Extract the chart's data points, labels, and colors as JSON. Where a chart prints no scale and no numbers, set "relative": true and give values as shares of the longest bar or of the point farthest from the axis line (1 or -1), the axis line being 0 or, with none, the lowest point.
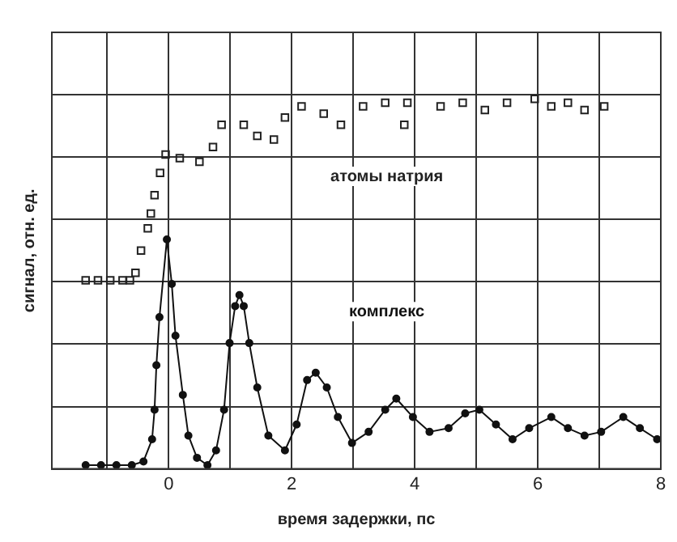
{
  "chart_data": {
    "type": "scatter",
    "xlabel": "время задержки, пс",
    "ylabel": "сигнал, отн. ед.",
    "relative": true,
    "grid": true,
    "legend": false,
    "xlim": [
      -1.9,
      8
    ],
    "xticks": [
      {
        "value": -1,
        "label": null
      },
      0,
      {
        "value": 1,
        "label": null
      },
      2,
      {
        "value": 3,
        "label": null
      },
      4,
      {
        "value": 5,
        "label": null
      },
      6,
      {
        "value": 7,
        "label": null
      },
      8
    ],
    "series": [
      {
        "name": "атомы натрия",
        "type": "scatter",
        "marker": "square",
        "color": "#222222",
        "x": [
          -1.35,
          -1.15,
          -0.95,
          -0.75,
          -0.63,
          -0.54,
          -0.45,
          -0.34,
          -0.29,
          -0.23,
          -0.14,
          -0.05,
          0.18,
          0.5,
          0.72,
          0.86,
          1.22,
          1.44,
          1.71,
          1.89,
          2.16,
          2.52,
          2.8,
          3.16,
          3.52,
          3.83,
          3.88,
          4.42,
          4.78,
          5.14,
          5.5,
          5.95,
          6.22,
          6.49,
          6.76,
          7.08
        ],
        "values": [
          0.51,
          0.51,
          0.51,
          0.51,
          0.51,
          0.53,
          0.59,
          0.65,
          0.69,
          0.74,
          0.8,
          0.85,
          0.84,
          0.83,
          0.87,
          0.93,
          0.93,
          0.9,
          0.89,
          0.95,
          0.98,
          0.96,
          0.93,
          0.98,
          0.99,
          0.93,
          0.99,
          0.98,
          0.99,
          0.97,
          0.99,
          1,
          0.98,
          0.99,
          0.97,
          0.98
        ]
      },
      {
        "name": "комплекс",
        "type": "line",
        "marker": "circle",
        "color": "#111111",
        "x": [
          -1.35,
          -1.1,
          -0.85,
          -0.6,
          -0.41,
          -0.27,
          -0.23,
          -0.2,
          -0.15,
          -0.03,
          0.05,
          0.11,
          0.23,
          0.32,
          0.46,
          0.63,
          0.77,
          0.9,
          0.99,
          1.08,
          1.15,
          1.22,
          1.31,
          1.44,
          1.62,
          1.89,
          2.08,
          2.25,
          2.39,
          2.57,
          2.75,
          2.98,
          3.25,
          3.52,
          3.7,
          3.97,
          4.24,
          4.55,
          4.82,
          5.05,
          5.32,
          5.59,
          5.86,
          6.22,
          6.49,
          6.76,
          7.03,
          7.39,
          7.66,
          7.94
        ],
        "values": [
          0.01,
          0.01,
          0.01,
          0.01,
          0.02,
          0.08,
          0.16,
          0.28,
          0.41,
          0.62,
          0.5,
          0.36,
          0.2,
          0.09,
          0.03,
          0.01,
          0.05,
          0.16,
          0.34,
          0.44,
          0.47,
          0.44,
          0.34,
          0.22,
          0.09,
          0.05,
          0.12,
          0.24,
          0.26,
          0.22,
          0.14,
          0.07,
          0.1,
          0.16,
          0.19,
          0.14,
          0.1,
          0.11,
          0.15,
          0.16,
          0.12,
          0.08,
          0.11,
          0.14,
          0.11,
          0.09,
          0.1,
          0.14,
          0.11,
          0.08
        ]
      }
    ]
  }
}
